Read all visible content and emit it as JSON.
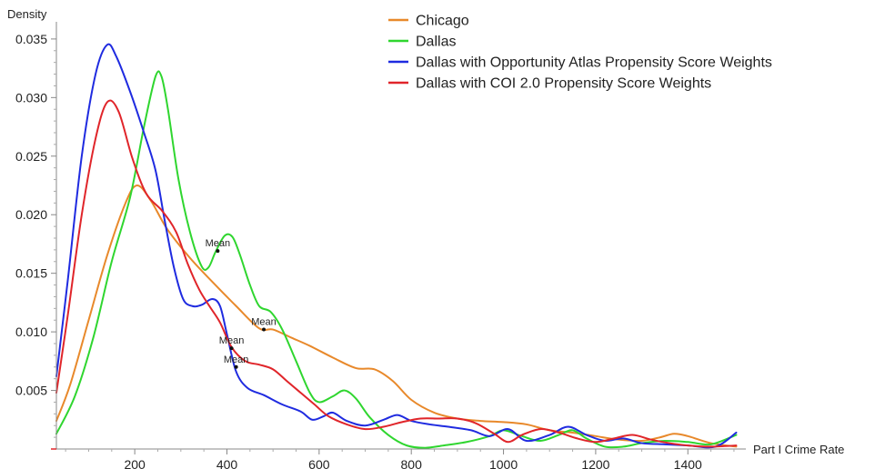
{
  "chart_data": {
    "type": "line",
    "xlabel": "Part I Crime Rate",
    "ylabel": "Density",
    "xlim": [
      30,
      1510
    ],
    "ylim": [
      0,
      0.036
    ],
    "x_ticks": [
      200,
      400,
      600,
      800,
      1000,
      1200,
      1400
    ],
    "x_tick_labels": [
      "200",
      "400",
      "600",
      "800",
      "1000",
      "1200",
      "1400"
    ],
    "y_ticks": [
      0.005,
      0.01,
      0.015,
      0.02,
      0.025,
      0.03,
      0.035
    ],
    "y_tick_labels": [
      "0.005",
      "0.010",
      "0.015",
      "0.020",
      "0.025",
      "0.030",
      "0.035"
    ],
    "grid": false,
    "legend_position": "top-right",
    "series": [
      {
        "name": "Chicago",
        "color": "#E8892B",
        "points": [
          [
            30,
            0.0024
          ],
          [
            60,
            0.0055
          ],
          [
            100,
            0.011
          ],
          [
            140,
            0.0165
          ],
          [
            180,
            0.021
          ],
          [
            205,
            0.0225
          ],
          [
            235,
            0.0212
          ],
          [
            270,
            0.0188
          ],
          [
            320,
            0.0163
          ],
          [
            370,
            0.0142
          ],
          [
            420,
            0.0122
          ],
          [
            470,
            0.0103
          ],
          [
            500,
            0.0102
          ],
          [
            540,
            0.0095
          ],
          [
            580,
            0.0088
          ],
          [
            630,
            0.0078
          ],
          [
            680,
            0.0069
          ],
          [
            720,
            0.0068
          ],
          [
            760,
            0.0058
          ],
          [
            800,
            0.0042
          ],
          [
            850,
            0.0031
          ],
          [
            900,
            0.0026
          ],
          [
            950,
            0.0024
          ],
          [
            1000,
            0.0023
          ],
          [
            1050,
            0.0021
          ],
          [
            1100,
            0.0016
          ],
          [
            1150,
            0.0014
          ],
          [
            1200,
            0.0011
          ],
          [
            1250,
            0.0008
          ],
          [
            1300,
            0.0007
          ],
          [
            1340,
            0.001
          ],
          [
            1370,
            0.0013
          ],
          [
            1400,
            0.0011
          ],
          [
            1450,
            0.0005
          ],
          [
            1505,
            0.0002
          ]
        ]
      },
      {
        "name": "Dallas",
        "color": "#2FD62F",
        "points": [
          [
            30,
            0.0013
          ],
          [
            70,
            0.0045
          ],
          [
            110,
            0.0095
          ],
          [
            150,
            0.016
          ],
          [
            190,
            0.0215
          ],
          [
            220,
            0.0275
          ],
          [
            245,
            0.0318
          ],
          [
            258,
            0.0318
          ],
          [
            272,
            0.029
          ],
          [
            295,
            0.023
          ],
          [
            320,
            0.0185
          ],
          [
            345,
            0.0156
          ],
          [
            360,
            0.0155
          ],
          [
            375,
            0.0168
          ],
          [
            395,
            0.0182
          ],
          [
            412,
            0.0181
          ],
          [
            428,
            0.0166
          ],
          [
            450,
            0.014
          ],
          [
            470,
            0.0122
          ],
          [
            495,
            0.0117
          ],
          [
            520,
            0.0102
          ],
          [
            550,
            0.0075
          ],
          [
            580,
            0.0048
          ],
          [
            600,
            0.004
          ],
          [
            630,
            0.0045
          ],
          [
            655,
            0.005
          ],
          [
            680,
            0.0043
          ],
          [
            710,
            0.0027
          ],
          [
            750,
            0.0012
          ],
          [
            790,
            0.0003
          ],
          [
            830,
            0.0001
          ],
          [
            870,
            0.0003
          ],
          [
            920,
            0.0006
          ],
          [
            970,
            0.0011
          ],
          [
            1000,
            0.0016
          ],
          [
            1040,
            0.0011
          ],
          [
            1080,
            0.0007
          ],
          [
            1120,
            0.0012
          ],
          [
            1150,
            0.0016
          ],
          [
            1180,
            0.0009
          ],
          [
            1220,
            0.0002
          ],
          [
            1260,
            0.0002
          ],
          [
            1300,
            0.0005
          ],
          [
            1350,
            0.0007
          ],
          [
            1400,
            0.0006
          ],
          [
            1450,
            0.0004
          ],
          [
            1505,
            0.0012
          ]
        ]
      },
      {
        "name": "Dallas with Opportunity Atlas Propensity Score Weights",
        "color": "#1F2BE0",
        "points": [
          [
            30,
            0.0062
          ],
          [
            55,
            0.0145
          ],
          [
            85,
            0.025
          ],
          [
            115,
            0.032
          ],
          [
            140,
            0.0345
          ],
          [
            160,
            0.0335
          ],
          [
            190,
            0.0305
          ],
          [
            220,
            0.027
          ],
          [
            245,
            0.0238
          ],
          [
            265,
            0.0195
          ],
          [
            285,
            0.0155
          ],
          [
            305,
            0.0128
          ],
          [
            325,
            0.0122
          ],
          [
            345,
            0.0123
          ],
          [
            368,
            0.0128
          ],
          [
            385,
            0.0122
          ],
          [
            400,
            0.0098
          ],
          [
            420,
            0.0066
          ],
          [
            445,
            0.0052
          ],
          [
            480,
            0.0046
          ],
          [
            520,
            0.0038
          ],
          [
            560,
            0.0032
          ],
          [
            585,
            0.0025
          ],
          [
            610,
            0.0028
          ],
          [
            630,
            0.0031
          ],
          [
            660,
            0.0024
          ],
          [
            700,
            0.002
          ],
          [
            740,
            0.0025
          ],
          [
            770,
            0.0029
          ],
          [
            800,
            0.0024
          ],
          [
            840,
            0.0021
          ],
          [
            880,
            0.0019
          ],
          [
            930,
            0.0016
          ],
          [
            970,
            0.0011
          ],
          [
            1010,
            0.0017
          ],
          [
            1050,
            0.0007
          ],
          [
            1100,
            0.0012
          ],
          [
            1140,
            0.0019
          ],
          [
            1180,
            0.0012
          ],
          [
            1220,
            0.0007
          ],
          [
            1260,
            0.0009
          ],
          [
            1300,
            0.0005
          ],
          [
            1350,
            0.0004
          ],
          [
            1400,
            0.0003
          ],
          [
            1460,
            0.0002
          ],
          [
            1505,
            0.0014
          ]
        ]
      },
      {
        "name": "Dallas with COI 2.0 Propensity Score Weights",
        "color": "#E0252A",
        "points": [
          [
            30,
            0.0048
          ],
          [
            55,
            0.0115
          ],
          [
            85,
            0.02
          ],
          [
            115,
            0.0265
          ],
          [
            140,
            0.0296
          ],
          [
            165,
            0.0288
          ],
          [
            195,
            0.0248
          ],
          [
            225,
            0.0218
          ],
          [
            260,
            0.0203
          ],
          [
            290,
            0.0185
          ],
          [
            315,
            0.0158
          ],
          [
            340,
            0.0136
          ],
          [
            362,
            0.0122
          ],
          [
            385,
            0.0108
          ],
          [
            410,
            0.0087
          ],
          [
            440,
            0.0075
          ],
          [
            470,
            0.0072
          ],
          [
            500,
            0.0068
          ],
          [
            530,
            0.0058
          ],
          [
            560,
            0.0048
          ],
          [
            590,
            0.0038
          ],
          [
            620,
            0.0028
          ],
          [
            660,
            0.0021
          ],
          [
            700,
            0.0017
          ],
          [
            740,
            0.0019
          ],
          [
            780,
            0.0023
          ],
          [
            820,
            0.0026
          ],
          [
            860,
            0.0026
          ],
          [
            900,
            0.0026
          ],
          [
            940,
            0.0022
          ],
          [
            980,
            0.0013
          ],
          [
            1010,
            0.0006
          ],
          [
            1040,
            0.0012
          ],
          [
            1080,
            0.0017
          ],
          [
            1120,
            0.0014
          ],
          [
            1160,
            0.0009
          ],
          [
            1200,
            0.0006
          ],
          [
            1240,
            0.0009
          ],
          [
            1280,
            0.0012
          ],
          [
            1320,
            0.0008
          ],
          [
            1360,
            0.0005
          ],
          [
            1400,
            0.0003
          ],
          [
            1450,
            0.0002
          ],
          [
            1505,
            0.0003
          ]
        ]
      }
    ],
    "annotations": [
      {
        "text": "Mean",
        "x": 380,
        "y": 0.0169,
        "series": "Dallas"
      },
      {
        "text": "Mean",
        "x": 480,
        "y": 0.0102,
        "series": "Chicago"
      },
      {
        "text": "Mean",
        "x": 410,
        "y": 0.0086,
        "series": "Dallas with Opportunity Atlas Propensity Score Weights"
      },
      {
        "text": "Mean",
        "x": 420,
        "y": 0.007,
        "series": "Dallas with COI 2.0 Propensity Score Weights"
      }
    ]
  }
}
